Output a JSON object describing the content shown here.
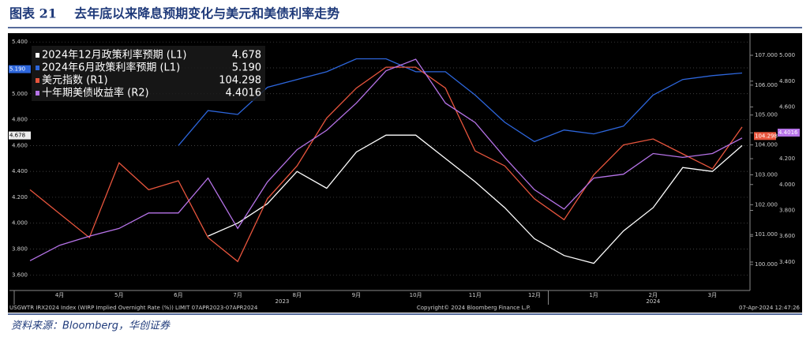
{
  "header": {
    "title": "图表 21    去年底以来降息预期变化与美元和美债利率走势"
  },
  "chart_data": {
    "type": "line",
    "categories": [
      null,
      "4月",
      null,
      "5月",
      null,
      "6月",
      null,
      "7月",
      null,
      "8月",
      null,
      "9月",
      null,
      "10月",
      null,
      "11月",
      null,
      "12月",
      null,
      "1月",
      null,
      "2月",
      null,
      "3月",
      null
    ],
    "year_spans": [
      {
        "label": "2023",
        "first": 0,
        "last": 17
      },
      {
        "label": "2024",
        "first": 18,
        "last": 24
      }
    ],
    "ylim": [
      3.48,
      5.45
    ],
    "yticks": [
      {
        "value": 3.6,
        "label": "3.600"
      },
      {
        "value": 3.8,
        "label": "3.800"
      },
      {
        "value": 4.0,
        "label": "4.000"
      },
      {
        "value": 4.2,
        "label": "4.200"
      },
      {
        "value": 4.4,
        "label": "4.400"
      },
      {
        "value": 4.6,
        "label": "4.600"
      },
      {
        "value": 4.8,
        "label": "4.800"
      },
      {
        "value": 5.0,
        "label": "5.000"
      },
      {
        "value": 5.2,
        "label": "5.200"
      },
      {
        "value": 5.4,
        "label": "5.400"
      }
    ],
    "y2lim": [
      99.13,
      107.66
    ],
    "y2ticks": [
      {
        "value": 100,
        "label": "100.000"
      },
      {
        "value": 101,
        "label": "101.000"
      },
      {
        "value": 102,
        "label": "102.000"
      },
      {
        "value": 103,
        "label": "103.000"
      },
      {
        "value": 104,
        "label": "104.000"
      },
      {
        "value": 105,
        "label": "105.000"
      },
      {
        "value": 106,
        "label": "106.000"
      },
      {
        "value": 107,
        "label": "107.000"
      }
    ],
    "y3lim": [
      3.18,
      5.153
    ],
    "y3ticks": [
      {
        "value": 3.4,
        "label": "3.400"
      },
      {
        "value": 3.6,
        "label": "3.600"
      },
      {
        "value": 3.8,
        "label": "3.800"
      },
      {
        "value": 4.0,
        "label": "4.000"
      },
      {
        "value": 4.2,
        "label": "4.200"
      },
      {
        "value": 4.4,
        "label": "4.400"
      },
      {
        "value": 4.6,
        "label": "4.600"
      },
      {
        "value": 4.8,
        "label": "4.800"
      },
      {
        "value": 5.0,
        "label": "5.000"
      }
    ],
    "grid": true,
    "legend": "top-left",
    "series": [
      {
        "name": "2024年12月政策利率预期 (L1)",
        "color": "#ffffff",
        "axis": "y",
        "last": {
          "value": 4.678,
          "label": "4.678"
        },
        "values": [
          null,
          null,
          null,
          null,
          null,
          null,
          3.9,
          4.0,
          4.15,
          4.4,
          4.27,
          4.55,
          4.68,
          4.68,
          4.5,
          4.32,
          4.12,
          3.88,
          3.75,
          3.69,
          3.94,
          4.12,
          4.43,
          4.4,
          4.6
        ]
      },
      {
        "name": "2024年6月政策利率预期 (L1)",
        "color": "#2d66dc",
        "axis": "y",
        "last": {
          "value": 5.19,
          "label": "5.190"
        },
        "values": [
          null,
          null,
          null,
          null,
          null,
          4.6,
          4.87,
          4.84,
          5.05,
          5.11,
          5.17,
          5.27,
          5.27,
          5.17,
          5.17,
          4.99,
          4.78,
          4.63,
          4.72,
          4.69,
          4.75,
          4.99,
          5.11,
          5.14,
          5.16
        ]
      },
      {
        "name": "美元指数 (R1)",
        "color": "#e8553d",
        "axis": "y2",
        "last": {
          "value": 104.298,
          "label": "104.298"
        },
        "values": [
          102.5,
          101.7,
          100.9,
          103.4,
          102.5,
          102.8,
          100.9,
          100.1,
          102.2,
          103.3,
          104.9,
          105.9,
          106.6,
          106.6,
          105.9,
          103.8,
          103.3,
          102.2,
          101.5,
          103.0,
          104.0,
          104.2,
          103.7,
          103.2,
          104.6
        ]
      },
      {
        "name": "十年期美债收益率 (R2)",
        "color": "#b673e8",
        "axis": "y3",
        "last": {
          "value": 4.4016,
          "label": "4.4016"
        },
        "values": [
          3.41,
          3.53,
          3.6,
          3.66,
          3.78,
          3.78,
          4.05,
          3.66,
          4.02,
          4.27,
          4.42,
          4.63,
          4.88,
          4.97,
          4.63,
          4.48,
          4.21,
          3.96,
          3.81,
          4.05,
          4.08,
          4.24,
          4.21,
          4.24,
          4.36
        ]
      }
    ],
    "footer_left": "USGWTR IRX2024 Index (WIRP Implied Overnight Rate (%)) LIMIT 07APR2023-07APR2024",
    "footer_center": "Copyright© 2024 Bloomberg Finance L.P.",
    "footer_right": "07-Apr-2024 12:47:26"
  },
  "source": "资料来源：Bloomberg，华创证券"
}
